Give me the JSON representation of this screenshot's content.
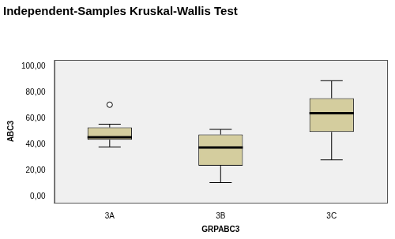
{
  "chart_data": {
    "type": "box",
    "title": "Independent-Samples Kruskal-Wallis Test",
    "x_label": "GRPABC3",
    "y_label": "ABC3",
    "categories": [
      "3A",
      "3B",
      "3C"
    ],
    "boxes": [
      {
        "min": 38,
        "q1": 43.5,
        "median": 45.5,
        "q3": 53,
        "max": 55.5,
        "outliers": [
          70.5
        ]
      },
      {
        "min": 10.5,
        "q1": 23.5,
        "median": 37.5,
        "q3": 47.5,
        "max": 51.5,
        "outliers": []
      },
      {
        "min": 28,
        "q1": 49.5,
        "median": 64,
        "q3": 75.5,
        "max": 89,
        "outliers": []
      }
    ],
    "color": "#d4cd9e",
    "ylim": [
      -5,
      105
    ],
    "yticks": [
      {
        "value": 0,
        "label": "0,00"
      },
      {
        "value": 20,
        "label": "20,00"
      },
      {
        "value": 40,
        "label": "40,00"
      },
      {
        "value": 60,
        "label": "60,00"
      },
      {
        "value": 80,
        "label": "80,00"
      },
      {
        "value": 100,
        "label": "100,00"
      }
    ],
    "grid": false
  }
}
